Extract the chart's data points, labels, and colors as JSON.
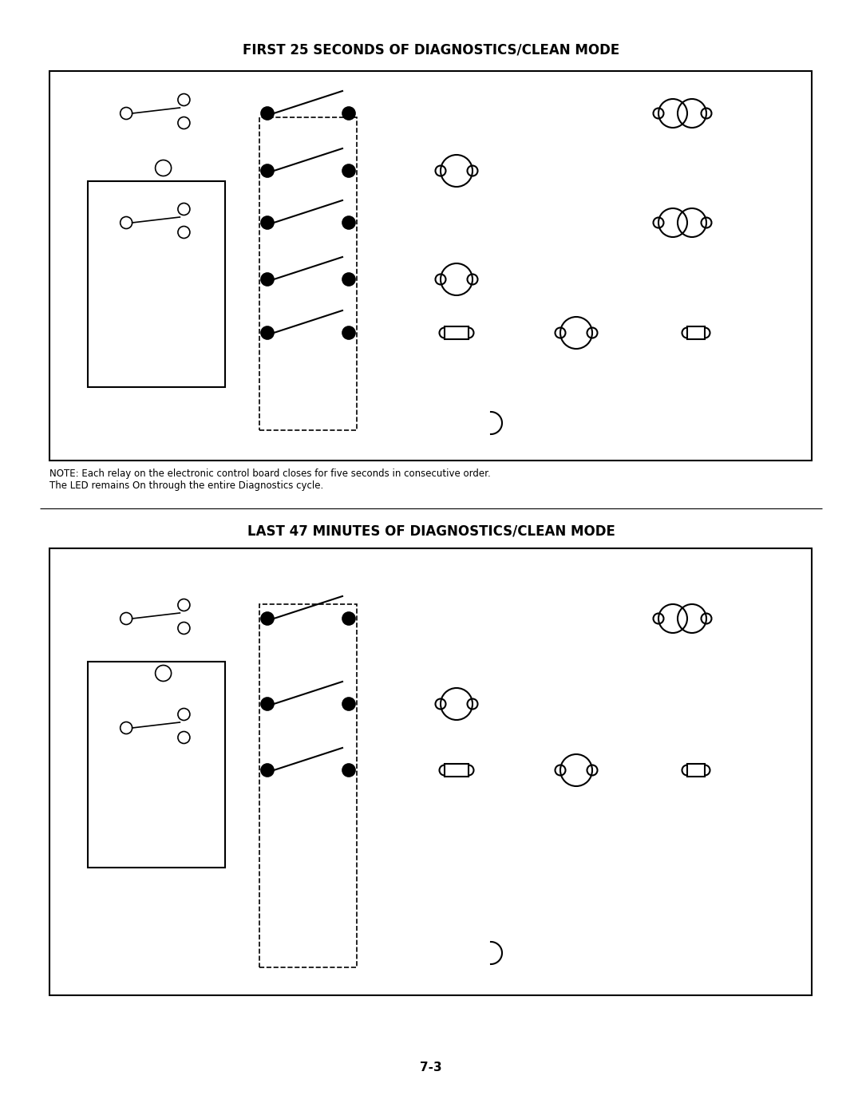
{
  "title1": "FIRST 25 SECONDS OF DIAGNOSTICS/CLEAN MODE",
  "title2": "LAST 47 MINUTES OF DIAGNOSTICS/CLEAN MODE",
  "note": "NOTE: Each relay on the electronic control board closes for five seconds in consecutive order.\nThe LED remains On through the entire Diagnostics cycle.",
  "page": "7-3",
  "bg_color": "#ffffff",
  "line_color": "#000000",
  "wire_color": "#5a0010",
  "title_fontsize": 12,
  "label_fontsize": 8,
  "small_fontsize": 7
}
